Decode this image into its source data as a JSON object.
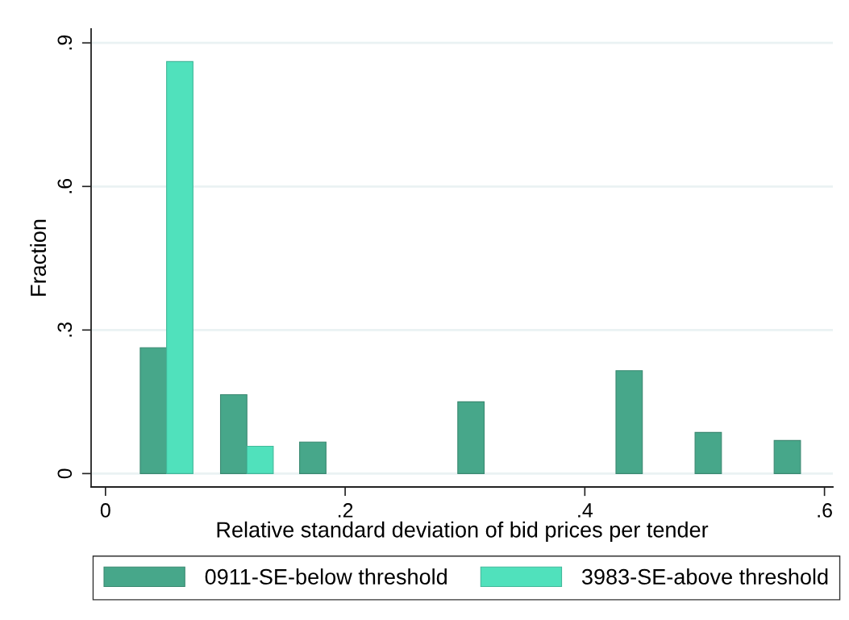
{
  "chart_data": {
    "type": "bar",
    "xlabel": "Relative standard deviation of bid prices per tender",
    "ylabel": "Fraction",
    "series": [
      {
        "name": "0911-SE-below threshold",
        "color": "#47a78a",
        "x": [
          0.04,
          0.107,
          0.173,
          0.305,
          0.437,
          0.503,
          0.569
        ],
        "values": [
          0.263,
          0.165,
          0.066,
          0.15,
          0.215,
          0.086,
          0.069
        ]
      },
      {
        "name": "3983-SE-above threshold",
        "color": "#50e1bc",
        "x": [
          0.062,
          0.129
        ],
        "values": [
          0.861,
          0.057
        ]
      }
    ],
    "xlim": [
      -0.012,
      0.607
    ],
    "ylim": [
      -0.028,
      0.929
    ],
    "xticks": [
      0,
      {
        "value": 0.2,
        "label": ".2"
      },
      {
        "value": 0.4,
        "label": ".4"
      },
      {
        "value": 0.6,
        "label": ".6"
      }
    ],
    "yticks": [
      0,
      {
        "value": 0.3,
        "label": ".3"
      },
      {
        "value": 0.6,
        "label": ".6"
      },
      {
        "value": 0.9,
        "label": ".9"
      }
    ],
    "grid": "y",
    "legend": "bottom"
  }
}
